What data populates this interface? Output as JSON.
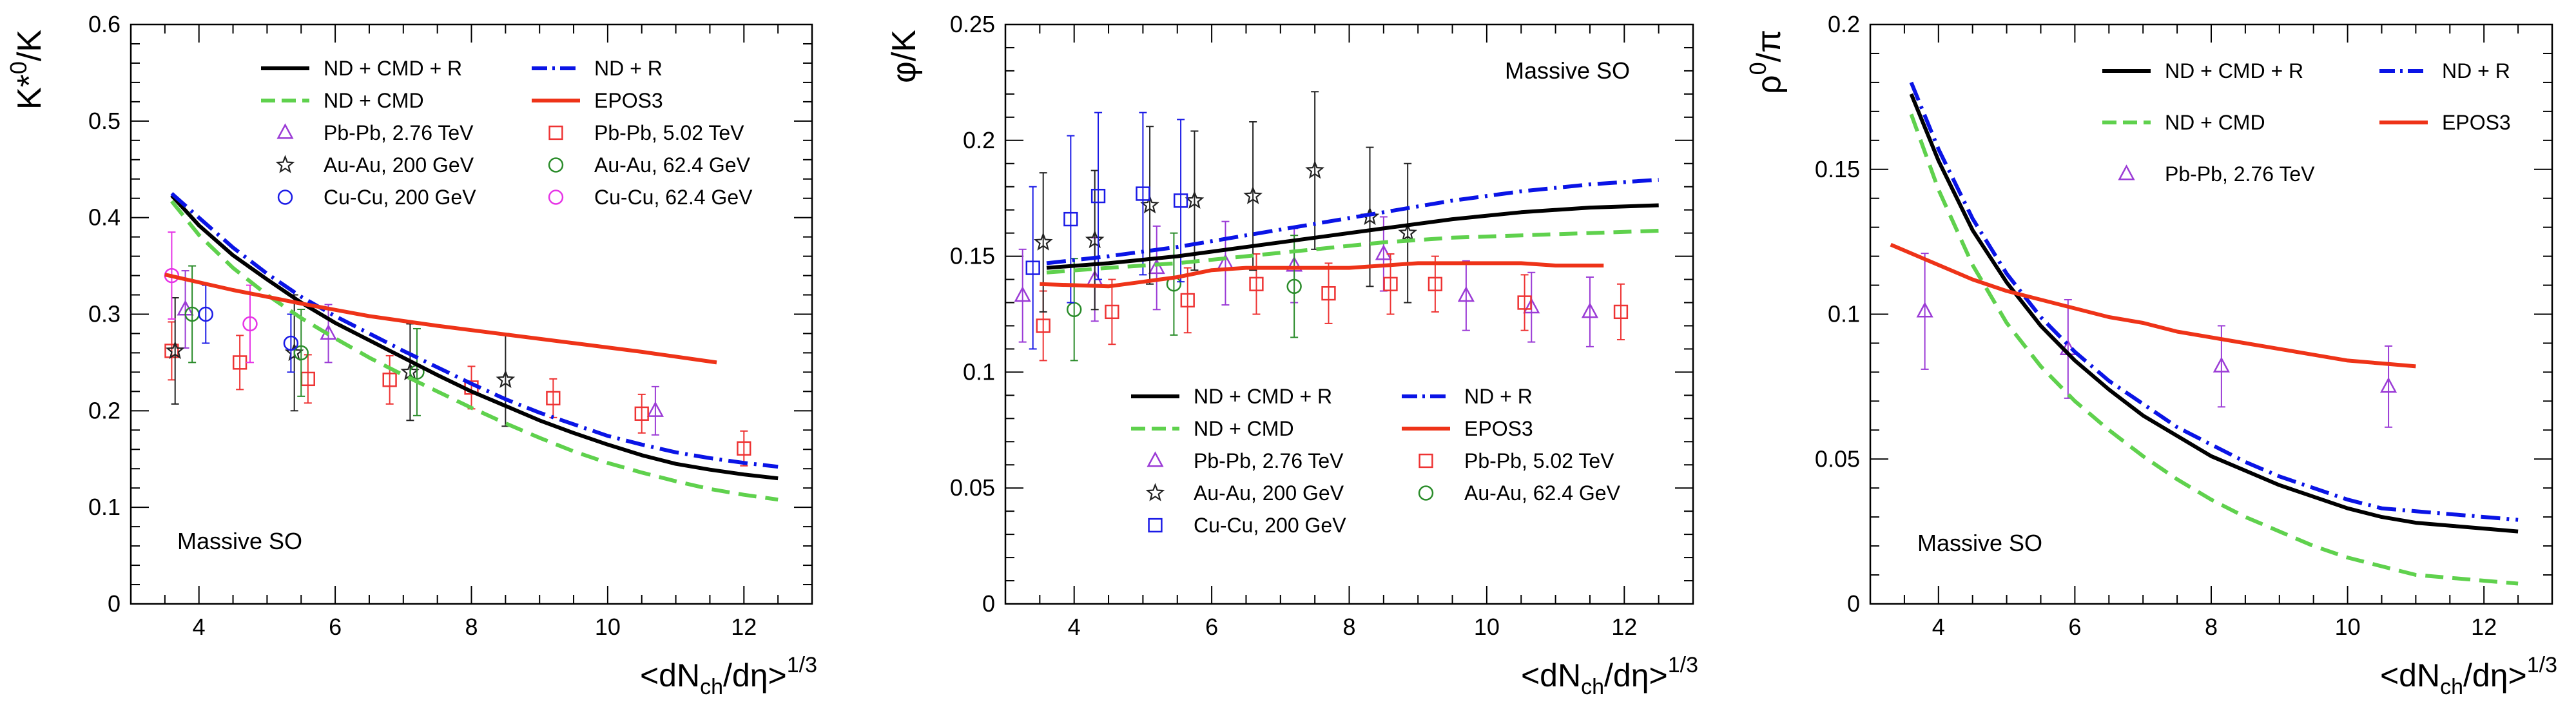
{
  "chart_data": [
    {
      "type": "line",
      "id": "kstar",
      "ylabel_main": "K*",
      "ylabel_sup": "0",
      "ylabel_tail": "/K",
      "xlabel_main": "<dN",
      "xlabel_sub": "ch",
      "xlabel_mid": "/dη>",
      "xlabel_sup": "1/3",
      "xlim": [
        3.0,
        13.0
      ],
      "ylim": [
        0.0,
        0.6
      ],
      "xticks": [
        "4",
        "6",
        "8",
        "10",
        "12"
      ],
      "xtick_values": [
        4,
        6,
        8,
        10,
        12
      ],
      "yticks": [
        "0",
        "0.1",
        "0.2",
        "0.3",
        "0.4",
        "0.5",
        "0.6"
      ],
      "ytick_values": [
        0,
        0.1,
        0.2,
        0.3,
        0.4,
        0.5,
        0.6
      ],
      "annotation": "Massive SO",
      "series": [
        {
          "name": "ND + CMD + R",
          "kind": "line",
          "color": "#000000",
          "dash": "solid",
          "x": [
            3.6,
            4.0,
            4.5,
            5.0,
            5.5,
            6.0,
            6.5,
            7.0,
            7.5,
            8.0,
            8.5,
            9.0,
            9.5,
            10.0,
            10.5,
            11.0,
            11.5,
            12.0,
            12.5
          ],
          "y": [
            0.423,
            0.392,
            0.361,
            0.336,
            0.312,
            0.291,
            0.273,
            0.255,
            0.237,
            0.22,
            0.205,
            0.19,
            0.177,
            0.165,
            0.154,
            0.145,
            0.139,
            0.134,
            0.13
          ]
        },
        {
          "name": "ND + R",
          "kind": "line",
          "color": "#0a14e6",
          "dash": "dashdot",
          "x": [
            3.6,
            4.0,
            4.5,
            5.0,
            5.5,
            6.0,
            6.5,
            7.0,
            7.5,
            8.0,
            8.5,
            9.0,
            9.5,
            10.0,
            10.5,
            11.0,
            11.5,
            12.0,
            12.5
          ],
          "y": [
            0.425,
            0.4,
            0.369,
            0.342,
            0.318,
            0.298,
            0.28,
            0.262,
            0.245,
            0.228,
            0.212,
            0.198,
            0.186,
            0.174,
            0.165,
            0.157,
            0.151,
            0.146,
            0.142
          ]
        },
        {
          "name": "ND + CMD",
          "kind": "line",
          "color": "#5fd14d",
          "dash": "dashed",
          "x": [
            3.6,
            4.0,
            4.5,
            5.0,
            5.5,
            6.0,
            6.5,
            7.0,
            7.5,
            8.0,
            8.5,
            9.0,
            9.5,
            10.0,
            10.5,
            11.0,
            11.5,
            12.0,
            12.5
          ],
          "y": [
            0.417,
            0.382,
            0.348,
            0.32,
            0.296,
            0.275,
            0.255,
            0.237,
            0.22,
            0.203,
            0.187,
            0.172,
            0.158,
            0.146,
            0.136,
            0.127,
            0.119,
            0.113,
            0.108
          ]
        },
        {
          "name": "EPOS3",
          "kind": "line",
          "color": "#ee3318",
          "dash": "solid",
          "x": [
            3.5,
            4.5,
            5.5,
            6.5,
            7.5,
            8.5,
            9.5,
            10.5,
            11.6
          ],
          "y": [
            0.341,
            0.325,
            0.311,
            0.298,
            0.288,
            0.279,
            0.27,
            0.261,
            0.25
          ]
        },
        {
          "name": "Pb-Pb, 2.76 TeV",
          "kind": "points",
          "marker": "triangle",
          "color": "#9b3bd6",
          "x": [
            3.8,
            5.9,
            10.7
          ],
          "y": [
            0.305,
            0.28,
            0.2
          ],
          "err": [
            0.04,
            0.03,
            0.025
          ]
        },
        {
          "name": "Pb-Pb, 5.02 TeV",
          "kind": "points",
          "marker": "square",
          "color": "#ee3333",
          "x": [
            3.6,
            4.6,
            5.6,
            6.8,
            8.0,
            9.2,
            10.5,
            12.0
          ],
          "y": [
            0.262,
            0.25,
            0.233,
            0.232,
            0.224,
            0.213,
            0.197,
            0.161
          ],
          "err": [
            0.03,
            0.028,
            0.025,
            0.025,
            0.022,
            0.02,
            0.02,
            0.018
          ]
        },
        {
          "name": "Au-Au, 200 GeV",
          "kind": "points",
          "marker": "star",
          "color": "#222222",
          "x": [
            3.65,
            5.4,
            7.1,
            8.5
          ],
          "y": [
            0.262,
            0.26,
            0.24,
            0.232
          ],
          "err": [
            0.055,
            0.06,
            0.05,
            0.048
          ]
        },
        {
          "name": "Au-Au, 62.4 GeV",
          "kind": "points",
          "marker": "circle",
          "color": "#2a8c2a",
          "x": [
            3.9,
            5.5,
            7.2
          ],
          "y": [
            0.3,
            0.26,
            0.24
          ],
          "err": [
            0.05,
            0.045,
            0.045
          ]
        },
        {
          "name": "Cu-Cu, 200 GeV",
          "kind": "points",
          "marker": "circle",
          "color": "#1a1ae6",
          "x": [
            4.1,
            5.35
          ],
          "y": [
            0.3,
            0.27
          ],
          "err": [
            0.03,
            0.03
          ]
        },
        {
          "name": "Cu-Cu, 62.4 GeV",
          "kind": "points",
          "marker": "circle",
          "color": "#e633e6",
          "x": [
            3.6,
            4.75
          ],
          "y": [
            0.34,
            0.29
          ],
          "err": [
            0.045,
            0.04
          ]
        }
      ]
    },
    {
      "type": "line",
      "id": "phi",
      "ylabel_main": "φ/K",
      "ylabel_sup": "",
      "ylabel_tail": "",
      "xlabel_main": "<dN",
      "xlabel_sub": "ch",
      "xlabel_mid": "/dη>",
      "xlabel_sup": "1/3",
      "xlim": [
        3.0,
        13.0
      ],
      "ylim": [
        0.0,
        0.25
      ],
      "xticks": [
        "4",
        "6",
        "8",
        "10",
        "12"
      ],
      "xtick_values": [
        4,
        6,
        8,
        10,
        12
      ],
      "yticks": [
        "0",
        "0.05",
        "0.1",
        "0.15",
        "0.2",
        "0.25"
      ],
      "ytick_values": [
        0,
        0.05,
        0.1,
        0.15,
        0.2,
        0.25
      ],
      "annotation": "Massive SO",
      "series": [
        {
          "name": "ND + CMD + R",
          "kind": "line",
          "color": "#000000",
          "dash": "solid",
          "x": [
            3.6,
            4.5,
            5.5,
            6.5,
            7.5,
            8.5,
            9.5,
            10.5,
            11.5,
            12.5
          ],
          "y": [
            0.145,
            0.147,
            0.15,
            0.154,
            0.158,
            0.162,
            0.166,
            0.169,
            0.171,
            0.172
          ]
        },
        {
          "name": "ND + R",
          "kind": "line",
          "color": "#0a14e6",
          "dash": "dashdot",
          "x": [
            3.6,
            4.5,
            5.5,
            6.5,
            7.5,
            8.5,
            9.5,
            10.5,
            11.5,
            12.5
          ],
          "y": [
            0.147,
            0.15,
            0.154,
            0.159,
            0.164,
            0.169,
            0.174,
            0.178,
            0.181,
            0.183
          ]
        },
        {
          "name": "ND + CMD",
          "kind": "line",
          "color": "#5fd14d",
          "dash": "dashed",
          "x": [
            3.6,
            4.5,
            5.5,
            6.5,
            7.5,
            8.5,
            9.5,
            10.5,
            11.5,
            12.5
          ],
          "y": [
            0.143,
            0.145,
            0.147,
            0.15,
            0.153,
            0.156,
            0.158,
            0.159,
            0.16,
            0.161
          ]
        },
        {
          "name": "EPOS3",
          "kind": "line",
          "color": "#ee3318",
          "dash": "solid",
          "x": [
            3.5,
            4.5,
            5.0,
            5.5,
            6.0,
            6.5,
            7.0,
            7.5,
            8.0,
            8.5,
            9.0,
            9.5,
            10.0,
            10.5,
            11.0,
            11.5,
            11.7
          ],
          "y": [
            0.138,
            0.137,
            0.139,
            0.141,
            0.144,
            0.145,
            0.145,
            0.145,
            0.145,
            0.146,
            0.147,
            0.147,
            0.147,
            0.147,
            0.146,
            0.146,
            0.146
          ]
        },
        {
          "name": "Pb-Pb, 2.76 TeV",
          "kind": "points",
          "marker": "triangle",
          "color": "#9b3bd6",
          "x": [
            3.25,
            4.3,
            5.2,
            6.2,
            7.2,
            8.5,
            9.7,
            10.65,
            11.5
          ],
          "y": [
            0.133,
            0.14,
            0.145,
            0.147,
            0.146,
            0.151,
            0.133,
            0.128,
            0.126
          ],
          "err": [
            0.02,
            0.018,
            0.018,
            0.018,
            0.016,
            0.016,
            0.015,
            0.015,
            0.015
          ]
        },
        {
          "name": "Pb-Pb, 5.02 TeV",
          "kind": "points",
          "marker": "square",
          "color": "#ee3333",
          "x": [
            3.55,
            4.55,
            5.65,
            6.65,
            7.7,
            8.6,
            9.25,
            10.55,
            11.95
          ],
          "y": [
            0.12,
            0.126,
            0.131,
            0.138,
            0.134,
            0.138,
            0.138,
            0.13,
            0.126
          ],
          "err": [
            0.015,
            0.014,
            0.014,
            0.013,
            0.013,
            0.013,
            0.012,
            0.012,
            0.012
          ]
        },
        {
          "name": "Au-Au, 200 GeV",
          "kind": "points",
          "marker": "star",
          "color": "#222222",
          "x": [
            3.55,
            4.3,
            5.1,
            5.75,
            6.6,
            7.5,
            8.3,
            8.85
          ],
          "y": [
            0.156,
            0.157,
            0.172,
            0.174,
            0.176,
            0.187,
            0.167,
            0.16
          ],
          "err": [
            0.03,
            0.03,
            0.034,
            0.03,
            0.032,
            0.034,
            0.03,
            0.03
          ]
        },
        {
          "name": "Au-Au, 62.4 GeV",
          "kind": "points",
          "marker": "circle",
          "color": "#2a8c2a",
          "x": [
            4.0,
            5.45,
            7.2
          ],
          "y": [
            0.127,
            0.138,
            0.137
          ],
          "err": [
            0.022,
            0.022,
            0.022
          ]
        },
        {
          "name": "Cu-Cu, 200 GeV",
          "kind": "points",
          "marker": "square",
          "color": "#1a1ae6",
          "x": [
            3.4,
            3.95,
            4.35,
            5.0,
            5.55
          ],
          "y": [
            0.145,
            0.166,
            0.176,
            0.177,
            0.174
          ],
          "err": [
            0.035,
            0.036,
            0.036,
            0.035,
            0.035
          ]
        }
      ]
    },
    {
      "type": "line",
      "id": "rho",
      "ylabel_main": "ρ",
      "ylabel_sup": "0",
      "ylabel_tail": "/π",
      "xlabel_main": "<dN",
      "xlabel_sub": "ch",
      "xlabel_mid": "/dη>",
      "xlabel_sup": "1/3",
      "xlim": [
        3.0,
        13.0
      ],
      "ylim": [
        0.0,
        0.2
      ],
      "xticks": [
        "4",
        "6",
        "8",
        "10",
        "12"
      ],
      "xtick_values": [
        4,
        6,
        8,
        10,
        12
      ],
      "yticks": [
        "0",
        "0.05",
        "0.1",
        "0.15",
        "0.2"
      ],
      "ytick_values": [
        0,
        0.05,
        0.1,
        0.15,
        0.2
      ],
      "annotation": "Massive SO",
      "series": [
        {
          "name": "ND + CMD + R",
          "kind": "line",
          "color": "#000000",
          "dash": "solid",
          "x": [
            3.6,
            4.0,
            4.5,
            5.0,
            5.5,
            6.0,
            6.5,
            7.0,
            7.5,
            8.0,
            8.5,
            9.0,
            9.5,
            10.0,
            10.5,
            11.0,
            11.5,
            12.0,
            12.5
          ],
          "y": [
            0.176,
            0.153,
            0.129,
            0.111,
            0.096,
            0.084,
            0.074,
            0.065,
            0.058,
            0.051,
            0.046,
            0.041,
            0.037,
            0.033,
            0.03,
            0.028,
            0.027,
            0.026,
            0.025
          ]
        },
        {
          "name": "ND + R",
          "kind": "line",
          "color": "#0a14e6",
          "dash": "dashdot",
          "x": [
            3.6,
            4.0,
            4.5,
            5.0,
            5.5,
            6.0,
            6.5,
            7.0,
            7.5,
            8.0,
            8.5,
            9.0,
            9.5,
            10.0,
            10.5,
            11.0,
            11.5,
            12.0,
            12.5
          ],
          "y": [
            0.18,
            0.157,
            0.133,
            0.114,
            0.099,
            0.087,
            0.077,
            0.069,
            0.061,
            0.055,
            0.049,
            0.044,
            0.04,
            0.036,
            0.033,
            0.032,
            0.031,
            0.03,
            0.029
          ]
        },
        {
          "name": "ND + CMD",
          "kind": "line",
          "color": "#5fd14d",
          "dash": "dashed",
          "x": [
            3.6,
            4.0,
            4.5,
            5.0,
            5.5,
            6.0,
            6.5,
            7.0,
            7.5,
            8.0,
            8.5,
            9.0,
            9.5,
            10.0,
            10.5,
            11.0,
            11.5,
            12.0,
            12.5
          ],
          "y": [
            0.169,
            0.143,
            0.117,
            0.097,
            0.082,
            0.07,
            0.06,
            0.051,
            0.043,
            0.036,
            0.03,
            0.025,
            0.02,
            0.016,
            0.013,
            0.01,
            0.009,
            0.008,
            0.007
          ]
        },
        {
          "name": "EPOS3",
          "kind": "line",
          "color": "#ee3318",
          "dash": "solid",
          "x": [
            3.3,
            4.0,
            4.5,
            5.0,
            5.5,
            6.0,
            6.5,
            7.0,
            7.5,
            8.0,
            8.5,
            9.0,
            9.5,
            10.0,
            10.5,
            11.0
          ],
          "y": [
            0.124,
            0.117,
            0.112,
            0.108,
            0.105,
            0.102,
            0.099,
            0.097,
            0.094,
            0.092,
            0.09,
            0.088,
            0.086,
            0.084,
            0.083,
            0.082
          ]
        },
        {
          "name": "Pb-Pb, 2.76 TeV",
          "kind": "points",
          "marker": "triangle",
          "color": "#9b3bd6",
          "x": [
            3.8,
            5.9,
            8.15,
            10.6
          ],
          "y": [
            0.101,
            0.088,
            0.082,
            0.075
          ],
          "err": [
            0.02,
            0.017,
            0.014,
            0.014
          ]
        }
      ]
    }
  ]
}
